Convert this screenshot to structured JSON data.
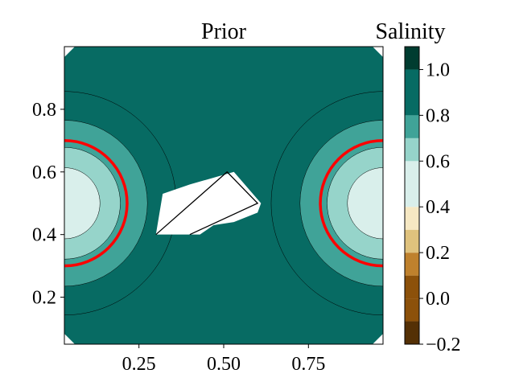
{
  "chart_data": [
    {
      "type": "contour",
      "title": "Prior",
      "xlabel": "",
      "ylabel": "",
      "xlim": [
        0.03,
        0.97
      ],
      "ylim": [
        0.05,
        1.0
      ],
      "xticks": [
        "0.25",
        "0.50",
        "0.75"
      ],
      "xtick_values": [
        0.25,
        0.5,
        0.75
      ],
      "yticks": [
        "0.2",
        "0.4",
        "0.6",
        "0.8"
      ],
      "ytick_values": [
        0.2,
        0.4,
        0.6,
        0.8
      ],
      "background_level": 0.9,
      "plumes": [
        {
          "center": [
            0.03,
            0.5
          ],
          "levels": [
            {
              "radius": 0.33,
              "value": 0.9,
              "color": "#076b63"
            },
            {
              "radius": 0.245,
              "value": 0.75,
              "color": "#40a398"
            },
            {
              "radius": 0.165,
              "value": 0.65,
              "color": "#96d4ca"
            },
            {
              "radius": 0.105,
              "value": 0.5,
              "color": "#d9efeb"
            }
          ],
          "highlight_radius": 0.185
        },
        {
          "center": [
            0.97,
            0.5
          ],
          "levels": [
            {
              "radius": 0.33,
              "value": 0.9,
              "color": "#076b63"
            },
            {
              "radius": 0.245,
              "value": 0.75,
              "color": "#40a398"
            },
            {
              "radius": 0.165,
              "value": 0.65,
              "color": "#96d4ca"
            },
            {
              "radius": 0.105,
              "value": 0.5,
              "color": "#d9efeb"
            }
          ],
          "highlight_radius": 0.185
        }
      ],
      "masked_region": [
        [
          0.3,
          0.4
        ],
        [
          0.32,
          0.53
        ],
        [
          0.4,
          0.56
        ],
        [
          0.53,
          0.6
        ],
        [
          0.61,
          0.5
        ],
        [
          0.6,
          0.47
        ],
        [
          0.53,
          0.44
        ],
        [
          0.47,
          0.43
        ],
        [
          0.43,
          0.4
        ]
      ],
      "boundary_lines": [
        [
          [
            0.3,
            0.4
          ],
          [
            0.51,
            0.6
          ],
          [
            0.6,
            0.5
          ],
          [
            0.4,
            0.4
          ]
        ]
      ],
      "highlight_color": "#ff0000"
    },
    {
      "type": "colorbar",
      "title": "Salinity",
      "ticks": [
        "−0.2",
        "0.0",
        "0.2",
        "0.4",
        "0.6",
        "0.8",
        "1.0"
      ],
      "tick_values": [
        -0.2,
        0.0,
        0.2,
        0.4,
        0.6,
        0.8,
        1.0
      ],
      "range": [
        -0.2,
        1.1
      ],
      "levels": [
        {
          "from": -0.2,
          "to": -0.1,
          "color": "#543005"
        },
        {
          "from": -0.1,
          "to": 0.0,
          "color": "#8c510a"
        },
        {
          "from": 0.0,
          "to": 0.1,
          "color": "#8c510a"
        },
        {
          "from": 0.1,
          "to": 0.2,
          "color": "#bf812d"
        },
        {
          "from": 0.2,
          "to": 0.3,
          "color": "#dfc27d"
        },
        {
          "from": 0.3,
          "to": 0.4,
          "color": "#f6e8c3"
        },
        {
          "from": 0.4,
          "to": 0.6,
          "color": "#d9efeb"
        },
        {
          "from": 0.6,
          "to": 0.7,
          "color": "#96d4ca"
        },
        {
          "from": 0.7,
          "to": 0.8,
          "color": "#40a398"
        },
        {
          "from": 0.8,
          "to": 1.0,
          "color": "#076b63"
        },
        {
          "from": 1.0,
          "to": 1.1,
          "color": "#003c30"
        }
      ]
    }
  ]
}
